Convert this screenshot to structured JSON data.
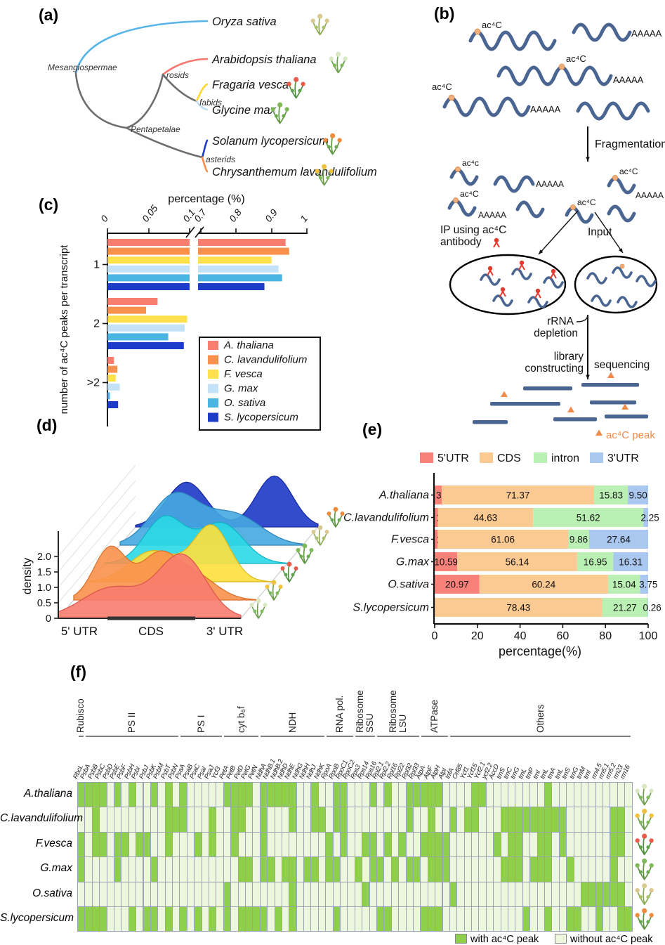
{
  "panels": {
    "a_label": "(a)",
    "b_label": "(b)",
    "c_label": "(c)",
    "d_label": "(d)",
    "e_label": "(e)",
    "f_label": "(f)"
  },
  "panel_a": {
    "clades": {
      "root": "Mesangiospermae",
      "mid": "Pentapetalae",
      "rosids": "rosids",
      "fabids": "fabids",
      "asterids": "asterids"
    },
    "species": [
      {
        "name": "Oryza sativa",
        "branch_color": "#56b4e9",
        "icon": "rice"
      },
      {
        "name": "Arabidopsis thaliana",
        "branch_color": "#f8766d",
        "icon": "arabidopsis"
      },
      {
        "name": "Fragaria vesca",
        "branch_color": "#ffd92f",
        "icon": "strawberry"
      },
      {
        "name": "Glycine max",
        "branch_color": "#bfdff5",
        "icon": "soybean"
      },
      {
        "name": "Solanum lycopersicum",
        "branch_color": "#1f3bc8",
        "icon": "tomato"
      },
      {
        "name": "Chrysanthemum lavandulifolium",
        "branch_color": "#f98e4a",
        "icon": "chrysanthemum"
      }
    ],
    "trunk_color": "#6e6e6e"
  },
  "panel_b": {
    "labels": {
      "fragmentation": "Fragmentation",
      "ip_line1": "IP using ac⁴C",
      "ip_line2": "antibody",
      "input": "Input",
      "rrna_line1": "rRNA",
      "rrna_line2": "depletion",
      "library_line1": "library",
      "library_line2": "constructing",
      "sequencing": "sequencing",
      "peak_legend": "ac⁴C peak",
      "mark": "ac⁴C",
      "mark_alt": "ac⁴c",
      "polyA": "AAAAA"
    },
    "colors": {
      "rna": "#4a6591",
      "mark": "#efae7a",
      "antibody": "#e23b2e",
      "peak": "#f08a4b"
    }
  },
  "plant_icons": {
    "rice": {
      "stem": "#8aab52",
      "dots": "#d9c98e",
      "leaf": "#a8c06a"
    },
    "arabidopsis": {
      "stem": "#6b9e4f",
      "dots": "#d9e8c2",
      "leaf": "#7fb95a"
    },
    "strawberry": {
      "stem": "#4e8f3d",
      "dots": "#e85c4a",
      "leaf": "#5da24a"
    },
    "soybean": {
      "stem": "#5d9440",
      "dots": "#7fb95a",
      "leaf": "#6aa84f"
    },
    "tomato": {
      "stem": "#5d9440",
      "dots": "#ef8b3a",
      "leaf": "#6aa84f"
    },
    "chrysanthemum": {
      "stem": "#6a9b4a",
      "dots": "#f0c23c",
      "leaf": "#7fb95a"
    }
  },
  "chart_data": [
    {
      "panel": "c",
      "type": "bar",
      "title": "percentage (%)",
      "ylabel": "number of ac⁴C peaks per transcript",
      "groups": [
        "1",
        "2",
        ">2"
      ],
      "axis_break_between": [
        0.1,
        0.7
      ],
      "xticks_segment1": [
        "0",
        "0.05",
        "0.1"
      ],
      "xticks_segment2": [
        "0.7",
        "0.8",
        "0.9",
        "1"
      ],
      "series": [
        {
          "name": "A. thaliana",
          "color": "#f87e70",
          "values": [
            0.94,
            0.061,
            0.008
          ]
        },
        {
          "name": "C. lavandulifolium",
          "color": "#f9914c",
          "values": [
            0.95,
            0.047,
            0.012
          ]
        },
        {
          "name": "F. vesca",
          "color": "#ffe14d",
          "values": [
            0.9,
            0.097,
            0.01
          ]
        },
        {
          "name": "G. max",
          "color": "#c3e2f7",
          "values": [
            0.92,
            0.094,
            0.015
          ]
        },
        {
          "name": "O. sativa",
          "color": "#4ab5e2",
          "values": [
            0.93,
            0.074,
            0.003
          ]
        },
        {
          "name": "S. lycopersicum",
          "color": "#1d3cc9",
          "values": [
            0.88,
            0.093,
            0.013
          ]
        }
      ]
    },
    {
      "panel": "d",
      "type": "ridgeline",
      "ylabel": "density",
      "yticks": [
        "0",
        "0.5",
        "1.0",
        "1.5",
        "2.0"
      ],
      "xticks": [
        "5' UTR",
        "CDS",
        "3' UTR"
      ],
      "series": [
        {
          "name": "A.thaliana",
          "color": "#f87c6f",
          "stroke": "#d9554a",
          "icon": "arabidopsis",
          "peaks": [
            {
              "mu": 30,
              "sig": 17,
              "amp": 1.0
            },
            {
              "mu": 68,
              "sig": 13,
              "amp": 2.0
            }
          ]
        },
        {
          "name": "C.lavandulifolium",
          "color": "#f9914c",
          "stroke": "#d96f2a",
          "icon": "chrysanthemum",
          "peaks": [
            {
              "mu": 20,
              "sig": 9,
              "amp": 1.7
            },
            {
              "mu": 46,
              "sig": 10,
              "amp": 1.35
            },
            {
              "mu": 66,
              "sig": 12,
              "amp": 0.8
            }
          ]
        },
        {
          "name": "F.vesca",
          "color": "#ffdf3c",
          "stroke": "#d9b71f",
          "icon": "strawberry",
          "peaks": [
            {
              "mu": 35,
              "sig": 13,
              "amp": 1.0
            },
            {
              "mu": 67,
              "sig": 10,
              "amp": 1.8
            }
          ]
        },
        {
          "name": "G.max",
          "color": "#2bd8e6",
          "stroke": "#0fb3c2",
          "icon": "soybean",
          "peaks": [
            {
              "mu": 33,
              "sig": 11,
              "amp": 1.5
            },
            {
              "mu": 64,
              "sig": 12,
              "amp": 1.3
            }
          ]
        },
        {
          "name": "O.sativa",
          "color": "#45a8df",
          "stroke": "#2b85bb",
          "icon": "rice",
          "peaks": [
            {
              "mu": 30,
              "sig": 13,
              "amp": 1.6
            },
            {
              "mu": 62,
              "sig": 15,
              "amp": 1.0
            }
          ]
        },
        {
          "name": "S.lycopersicum",
          "color": "#1c39c8",
          "stroke": "#12259b",
          "icon": "tomato",
          "peaks": [
            {
              "mu": 28,
              "sig": 11,
              "amp": 1.45
            },
            {
              "mu": 76,
              "sig": 10,
              "amp": 1.65
            }
          ]
        }
      ]
    },
    {
      "panel": "e",
      "type": "stacked-bar",
      "xlabel": "percentage(%)",
      "xticks": [
        "0",
        "20",
        "40",
        "60",
        "80",
        "100"
      ],
      "segments": [
        "5'UTR",
        "CDS",
        "intron",
        "3'UTR"
      ],
      "segment_colors": [
        "#f8827a",
        "#fbc992",
        "#baf0b4",
        "#a9c7ef"
      ],
      "categories": [
        "A.thaliana",
        "C.lavandulifolium",
        "F.vesca",
        "G.max",
        "O.sativa",
        "S.lycopersicum"
      ],
      "values": [
        [
          3.31,
          71.37,
          15.83,
          9.5
        ],
        [
          1.5,
          44.63,
          51.62,
          2.25
        ],
        [
          1.44,
          61.06,
          9.86,
          27.64
        ],
        [
          10.59,
          56.14,
          16.95,
          16.31
        ],
        [
          20.97,
          60.24,
          15.04,
          3.75
        ],
        [
          0.04,
          78.43,
          21.27,
          0.26
        ]
      ]
    },
    {
      "panel": "f",
      "type": "heatmap",
      "groups": [
        {
          "label": "Rubisco",
          "from": 1,
          "to": 1
        },
        {
          "label": "PS II",
          "from": 2,
          "to": 14
        },
        {
          "label": "PS I",
          "from": 15,
          "to": 20
        },
        {
          "label": "cyt b₆f",
          "from": 21,
          "to": 25
        },
        {
          "label": "NDH",
          "from": 26,
          "to": 34
        },
        {
          "label": "RNA pol.",
          "from": 35,
          "to": 38
        },
        {
          "label": "Ribosome\nSSU",
          "from": 39,
          "to": 41
        },
        {
          "label": "Ribosome\nLSU",
          "from": 42,
          "to": 47
        },
        {
          "label": "ATPase",
          "from": 48,
          "to": 51
        },
        {
          "label": "Others",
          "from": 52,
          "to": 76
        }
      ],
      "genes": [
        "RbcL",
        "PsbA",
        "PsbB",
        "PsbC",
        "PsbD",
        "PsbE",
        "PsbF",
        "PsbH",
        "PsbI",
        "PsbJ",
        "PsbK",
        "PsbM",
        "PsbT",
        "PsbN",
        "PsaA",
        "PsaB",
        "PsaC",
        "PsaI",
        "PsaJ",
        "Ycf3",
        "PetA",
        "PetB",
        "PetD",
        "PetG",
        "PetN",
        "NdhA",
        "NdhB.1",
        "NdhB.2",
        "NdhD",
        "NdhE",
        "NdhG",
        "NdhH",
        "NdhJ",
        "NdhK",
        "RpoA",
        "RpoB",
        "RpoC1",
        "RpoC2",
        "Rps3",
        "Rps14",
        "Rps16",
        "Rpl2.1",
        "Rpl2.2",
        "Rpl16",
        "Rpl22",
        "Rpl32",
        "Rpl33",
        "AtpA",
        "AtpF",
        "AtpH",
        "AtpI",
        "InfA",
        "Orf85",
        "Ycf1",
        "Ycf15",
        "Ycf2.1",
        "ycf2.2",
        "AccD",
        "trnS",
        "trnC",
        "trnG",
        "trnL",
        "trnP",
        "trnI",
        "trnL",
        "trnA",
        "trnL",
        "trnS",
        "trnG",
        "trnM",
        "trnI",
        "rrn4.5",
        "rrn5.1",
        "rrn5.2",
        "rrn23",
        "rrn16"
      ],
      "rows": [
        "A.thaliana",
        "C.lavandulifolium",
        "F.vesca",
        "G.max",
        "O.sativa",
        "S.lycopersicum"
      ],
      "row_icons": [
        "arabidopsis",
        "chrysanthemum",
        "strawberry",
        "soybean",
        "rice",
        "tomato"
      ],
      "matrix": [
        "1111010100101010000011110111110010011000101001111100001100000000100000000000",
        "0010000000001110001001100100010011011000000001001001011000111111111000000110",
        "1011011011001000101001000100000000101001101010011110000001011001101000000110",
        "1000010000100000000000110110110110110010110101101110000000111011100100000100",
        "0000000000000000000010000000010000000001000000000001000000000000000001111110",
        "1111000101101010101010111101010000010000011000011100000000000100100110010011"
      ],
      "cell_colors": {
        "with": "#8ed04b",
        "without": "#ecf7dd"
      },
      "legend": {
        "with": "with ac⁴C peak",
        "without": "without ac⁴C peak"
      }
    }
  ]
}
